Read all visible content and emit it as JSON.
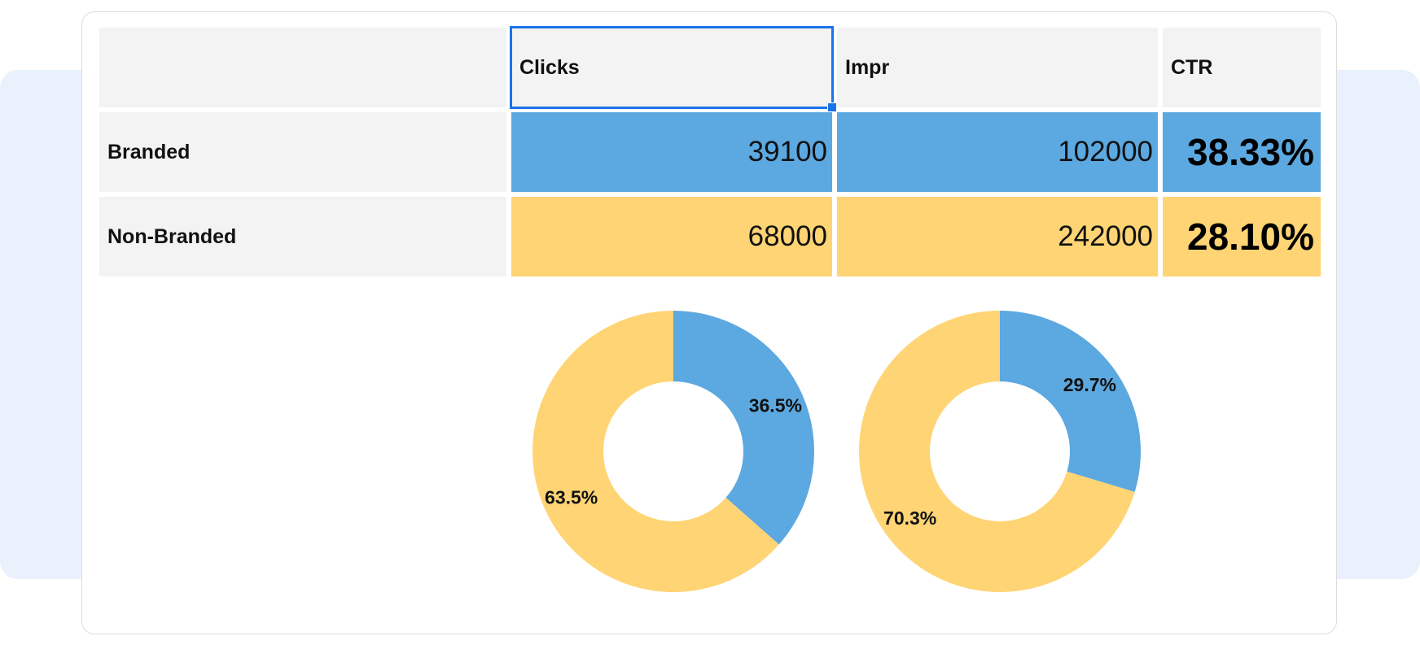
{
  "table": {
    "headers": [
      "",
      "Clicks",
      "Impr",
      "CTR"
    ],
    "rows": [
      {
        "label": "Branded",
        "clicks": "39100",
        "impr": "102000",
        "ctr": "38.33%"
      },
      {
        "label": "Non-Branded",
        "clicks": "68000",
        "impr": "242000",
        "ctr": "28.10%"
      }
    ]
  },
  "colors": {
    "branded": "#5ca8e0",
    "non_branded": "#ffd474",
    "selection": "#1a73e8"
  },
  "chart_data": [
    {
      "type": "pie",
      "categories": [
        "Branded",
        "Non-Branded"
      ],
      "values": [
        39100,
        68000
      ],
      "labels": [
        "36.5%",
        "63.5%"
      ]
    },
    {
      "type": "pie",
      "categories": [
        "Branded",
        "Non-Branded"
      ],
      "values": [
        102000,
        242000
      ],
      "labels": [
        "29.7%",
        "70.3%"
      ]
    }
  ]
}
